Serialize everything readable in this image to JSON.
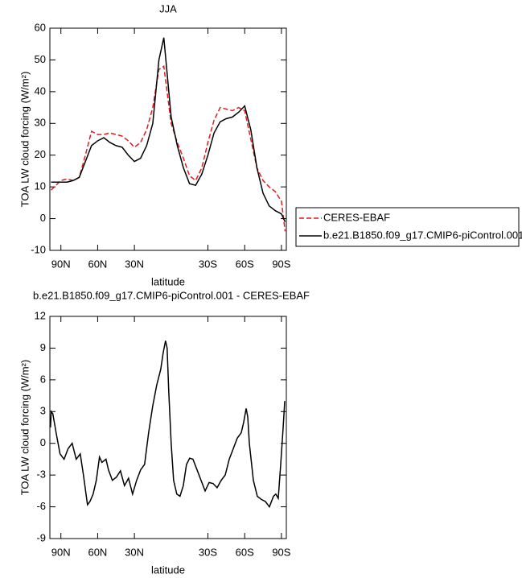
{
  "chart_data": [
    {
      "type": "line",
      "title": "JJA",
      "xlabel": "latitude",
      "ylabel": "TOA LW cloud forcing (W/m²)",
      "x": [
        98,
        90,
        85,
        80,
        75,
        70,
        65,
        60,
        55,
        50,
        45,
        40,
        35,
        30,
        25,
        20,
        15,
        10,
        6,
        0,
        -5,
        -10,
        -15,
        -20,
        -25,
        -30,
        -35,
        -40,
        -45,
        -50,
        -55,
        -60,
        -65,
        -70,
        -75,
        -80,
        -85,
        -90,
        -93
      ],
      "series": [
        {
          "name": "CERES-EBAF",
          "color": "#e41a1c",
          "line_style": "dashed",
          "values": [
            9,
            12,
            12.5,
            12,
            13,
            20,
            27.5,
            26.5,
            26.5,
            27,
            26.5,
            26,
            24.5,
            22.5,
            24,
            28,
            35,
            47,
            48,
            30,
            24,
            19,
            13.5,
            12,
            16,
            24,
            31,
            35,
            34.5,
            34,
            35,
            34,
            25,
            16,
            12,
            10,
            8.5,
            5.5,
            -4
          ]
        },
        {
          "name": "b.e21.B1850.f09_g17.CMIP6-piControl.001",
          "color": "#000000",
          "line_style": "solid",
          "values": [
            11.5,
            11.5,
            11.5,
            12,
            13,
            18,
            23,
            24.5,
            25.5,
            24,
            23,
            22.5,
            20,
            18,
            19,
            23,
            30,
            50,
            57,
            32,
            23,
            16,
            11,
            10.5,
            14,
            20,
            27,
            30.5,
            31.5,
            32,
            33.5,
            35.5,
            28,
            16,
            8,
            4,
            2.5,
            1.5,
            -1
          ]
        }
      ],
      "xlim": [
        99,
        -94
      ],
      "xticks": [
        {
          "value": 90,
          "label": "90N"
        },
        {
          "value": 60,
          "label": "60N"
        },
        {
          "value": 30,
          "label": "30N"
        },
        {
          "value": -30,
          "label": "30S"
        },
        {
          "value": -60,
          "label": "60S"
        },
        {
          "value": -90,
          "label": "90S"
        }
      ],
      "ylim": [
        -10,
        60
      ],
      "yticks": [
        -10,
        0,
        10,
        20,
        30,
        40,
        50,
        60
      ],
      "legend": "right",
      "grid": false
    },
    {
      "type": "line",
      "title": "b.e21.B1850.f09_g17.CMIP6-piControl.001 - CERES-EBAF",
      "xlabel": "latitude",
      "ylabel": "TOA LW cloud forcing (W/m²)",
      "x": [
        98.5,
        97.9,
        96.6,
        93.9,
        90.7,
        87.4,
        84.1,
        80.8,
        77.5,
        74.2,
        71.6,
        68.3,
        66.3,
        63.7,
        61.1,
        58.5,
        56.5,
        53.2,
        51.2,
        48,
        44.7,
        41.4,
        38.1,
        34.8,
        31.5,
        28.2,
        24.9,
        21.7,
        18.4,
        15.1,
        11.8,
        8.5,
        6.6,
        4.6,
        3.3,
        2,
        0,
        -2,
        -4.6,
        -7.2,
        -9.9,
        -12.5,
        -15.1,
        -17.8,
        -21.1,
        -24.4,
        -27.7,
        -31,
        -34.2,
        -37.5,
        -40.8,
        -44.1,
        -47.4,
        -50.7,
        -54,
        -57.2,
        -59.2,
        -61.2,
        -62.5,
        -63.8,
        -67.1,
        -70.3,
        -73.6,
        -76.9,
        -80.2,
        -83.5,
        -85.4,
        -87.4,
        -89.4,
        -91.4,
        -92.7
      ],
      "values": [
        1.5,
        3,
        2.8,
        1,
        -1,
        -1.5,
        -0.5,
        0,
        -1.5,
        -1,
        -3,
        -5.8,
        -5.5,
        -4.8,
        -3.5,
        -1.3,
        -1.8,
        -1.5,
        -2.5,
        -3.5,
        -3.2,
        -2.6,
        -4,
        -3.3,
        -4.8,
        -3.5,
        -2.5,
        -2,
        1,
        3.5,
        5.5,
        7,
        8.5,
        9.7,
        9,
        5,
        0,
        -3.5,
        -4.8,
        -5,
        -4,
        -2,
        -1.4,
        -1.5,
        -2.5,
        -3.5,
        -4.5,
        -3.7,
        -3.8,
        -4.2,
        -3.5,
        -3,
        -1.5,
        -0.5,
        0.5,
        1,
        2,
        3.3,
        2.5,
        0,
        -3.5,
        -5,
        -5.3,
        -5.5,
        -6,
        -5,
        -4.8,
        -5.2,
        -2,
        1.5,
        4
      ],
      "color": "#000000",
      "xlim": [
        99,
        -94
      ],
      "xticks": [
        {
          "value": 90,
          "label": "90N"
        },
        {
          "value": 60,
          "label": "60N"
        },
        {
          "value": 30,
          "label": "30N"
        },
        {
          "value": -30,
          "label": "30S"
        },
        {
          "value": -60,
          "label": "60S"
        },
        {
          "value": -90,
          "label": "90S"
        }
      ],
      "ylim": [
        -9,
        12
      ],
      "yticks": [
        -9,
        -6,
        -3,
        0,
        3,
        6,
        9,
        12
      ],
      "grid": false
    }
  ]
}
